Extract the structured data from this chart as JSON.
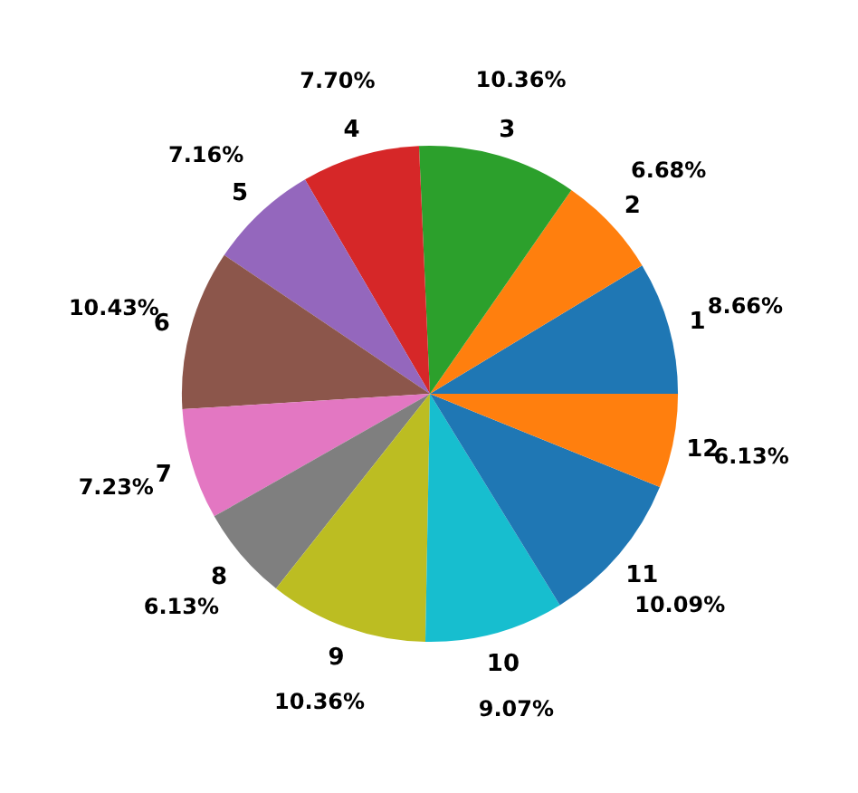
{
  "chart_data": {
    "type": "pie",
    "categories": [
      "1",
      "2",
      "3",
      "4",
      "5",
      "6",
      "7",
      "8",
      "9",
      "10",
      "11",
      "12"
    ],
    "values": [
      8.66,
      6.68,
      10.36,
      7.7,
      7.16,
      10.43,
      7.23,
      6.13,
      10.36,
      9.07,
      10.09,
      6.13
    ],
    "value_labels": [
      "8.66%",
      "6.68%",
      "10.36%",
      "7.70%",
      "7.16%",
      "10.43%",
      "7.23%",
      "6.13%",
      "10.36%",
      "9.07%",
      "10.09%",
      "6.13%"
    ],
    "colors": [
      "#1f77b4",
      "#ff7f0e",
      "#2ca02c",
      "#d62728",
      "#9467bd",
      "#8c564b",
      "#e377c2",
      "#7f7f7f",
      "#bcbd22",
      "#17becf",
      "#1f77b4",
      "#ff7f0e"
    ],
    "legend": false
  }
}
